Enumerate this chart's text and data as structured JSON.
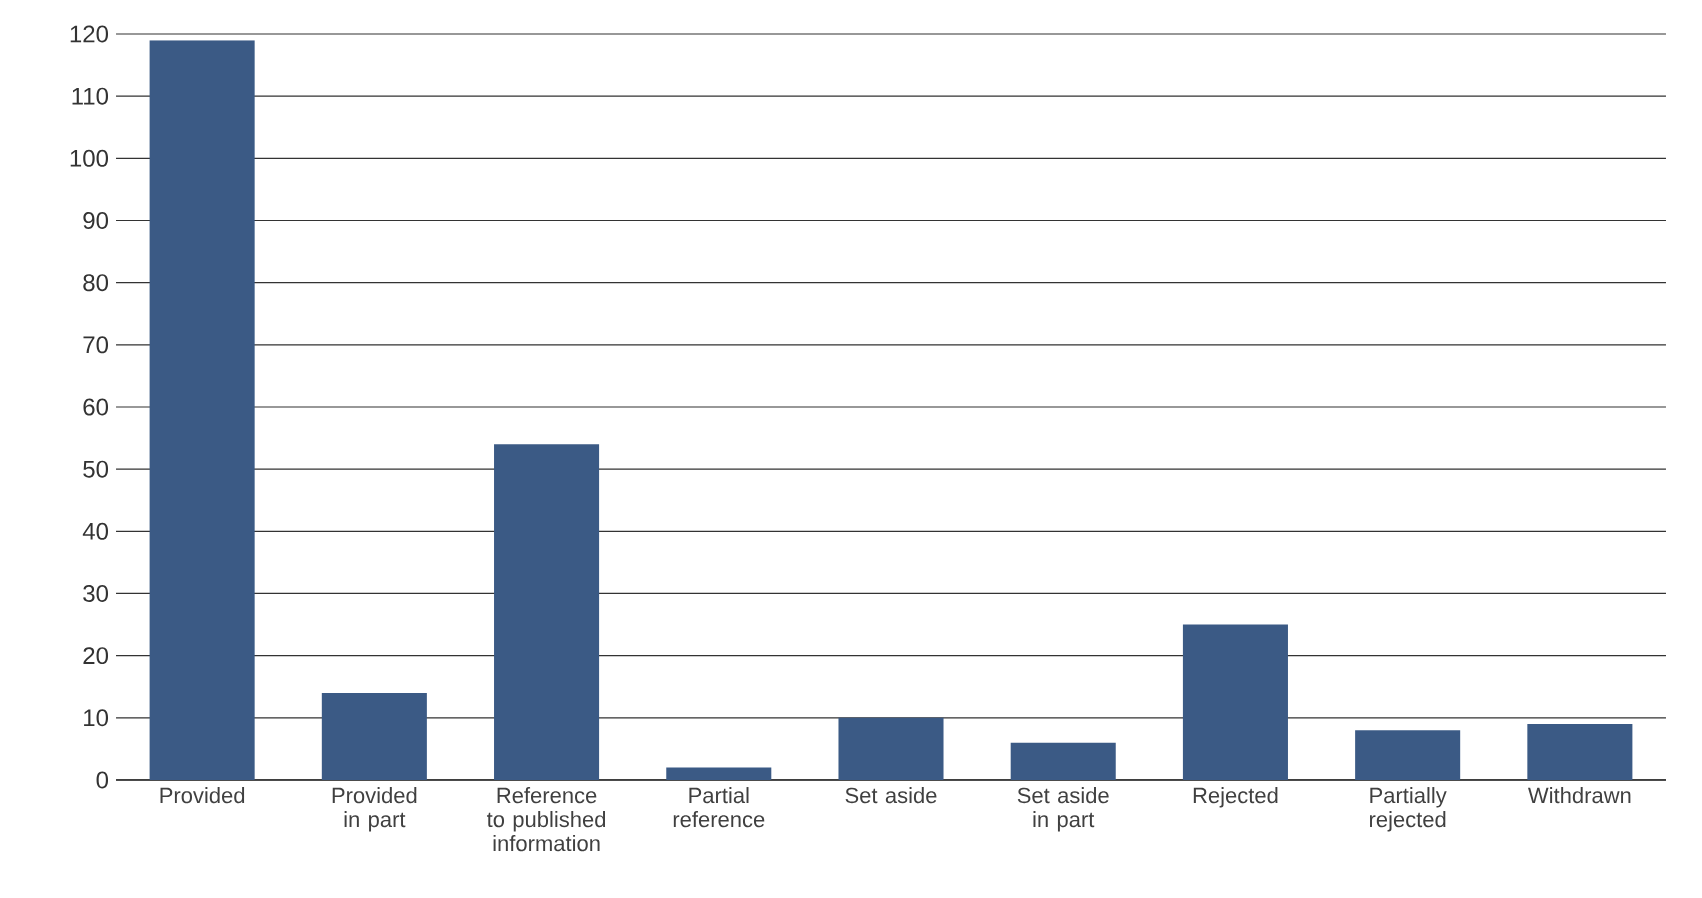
{
  "chart_data": {
    "type": "bar",
    "categories": [
      "Provided",
      "Provided in part",
      "Reference to published information",
      "Partial reference",
      "Set aside",
      "Set aside in part",
      "Rejected",
      "Partially rejected",
      "Withdrawn"
    ],
    "values": [
      119,
      14,
      54,
      2,
      10,
      6,
      25,
      8,
      9
    ],
    "color": "#3b5a85",
    "ylim": [
      0,
      120
    ],
    "yticks": [
      0,
      10,
      20,
      30,
      40,
      50,
      60,
      70,
      80,
      90,
      100,
      110,
      120
    ],
    "grid": "y"
  }
}
